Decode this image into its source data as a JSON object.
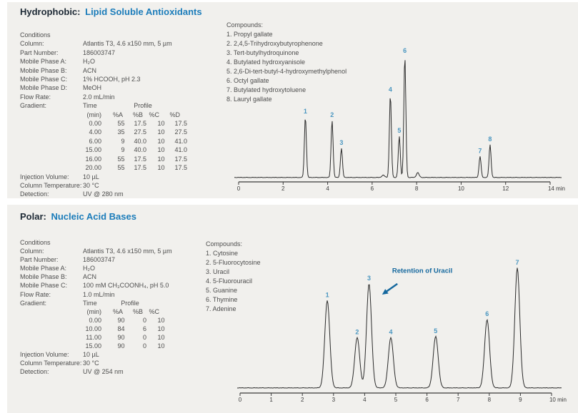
{
  "colors": {
    "page_bg": "#ffffff",
    "panel_bg": "#f1f0ed",
    "heading_dark": "#1e2a36",
    "heading_accent": "#1b7cba",
    "body_text": "#4e4e4e",
    "peak_label": "#4a96c0",
    "annotation": "#15689e",
    "trace": "#2b2b2b",
    "axis": "#3a3a3a"
  },
  "sections": [
    {
      "title_prefix": "Hydrophobic:",
      "title_main": "Lipid Soluble Antioxidants",
      "conditions_header": "Conditions",
      "conditions": [
        {
          "label": "Column:",
          "value": "Atlantis T3, 4.6 x150 mm, 5 µm"
        },
        {
          "label": "Part Number:",
          "value": "186003747"
        },
        {
          "label": "Mobile Phase A:",
          "value": "H₂O"
        },
        {
          "label": "Mobile Phase B:",
          "value": "ACN"
        },
        {
          "label": "Mobile Phase C:",
          "value": "1% HCOOH, pH 2.3"
        },
        {
          "label": "Mobile Phase D:",
          "value": "MeOH"
        },
        {
          "label": "Flow Rate:",
          "value": "2.0 mL/min"
        }
      ],
      "gradient": {
        "label": "Gradient:",
        "time_header": "Time",
        "profile_header": "Profile",
        "col_headers": [
          "(min)",
          "%A",
          "%B",
          "%C",
          "%D"
        ],
        "rows": [
          [
            "0.00",
            "55",
            "17.5",
            "10",
            "17.5"
          ],
          [
            "4.00",
            "35",
            "27.5",
            "10",
            "27.5"
          ],
          [
            "6.00",
            "9",
            "40.0",
            "10",
            "41.0"
          ],
          [
            "15.00",
            "9",
            "40.0",
            "10",
            "41.0"
          ],
          [
            "16.00",
            "55",
            "17.5",
            "10",
            "17.5"
          ],
          [
            "20.00",
            "55",
            "17.5",
            "10",
            "17.5"
          ]
        ]
      },
      "post_conditions": [
        {
          "label": "Injection Volume:",
          "value": "10 µL"
        },
        {
          "label": "Column Temperature:",
          "value": "30 °C"
        },
        {
          "label": "Detection:",
          "value": "UV @ 280 nm"
        }
      ],
      "compounds_header": "Compounds:",
      "compounds": [
        "1. Propyl gallate",
        "2. 2,4,5-Trihydroxybutyrophenone",
        "3. Tert-butylhydroquinone",
        "4. Butylated hydroxyanisole",
        "5. 2,6-Di-tert-butyl-4-hydroxymethylphenol",
        "6. Octyl gallate",
        "7. Butylated hydroxytoluene",
        "8. Lauryl gallate"
      ]
    },
    {
      "title_prefix": "Polar:",
      "title_main": "Nucleic Acid Bases",
      "conditions_header": "Conditions",
      "conditions": [
        {
          "label": "Column:",
          "value": "Atlantis T3, 4.6 x150 mm, 5 µm"
        },
        {
          "label": "Part Number:",
          "value": "186003747"
        },
        {
          "label": "Mobile Phase A:",
          "value": "H₂O"
        },
        {
          "label": "Mobile Phase B:",
          "value": "ACN"
        },
        {
          "label": "Mobile Phase C:",
          "value": "100 mM CH₃COONH₄, pH 5.0"
        },
        {
          "label": "Flow Rate:",
          "value": "1.0 mL/min"
        }
      ],
      "gradient": {
        "label": "Gradient:",
        "time_header": "Time",
        "profile_header": "Profile",
        "col_headers": [
          "(min)",
          "%A",
          "%B",
          "%C"
        ],
        "rows": [
          [
            "0.00",
            "90",
            "0",
            "10"
          ],
          [
            "10.00",
            "84",
            "6",
            "10"
          ],
          [
            "11.00",
            "90",
            "0",
            "10"
          ],
          [
            "15.00",
            "90",
            "0",
            "10"
          ]
        ]
      },
      "post_conditions": [
        {
          "label": "Injection Volume:",
          "value": "10 µL"
        },
        {
          "label": "Column Temperature:",
          "value": "30 °C"
        },
        {
          "label": "Detection:",
          "value": "UV @ 254 nm"
        }
      ],
      "compounds_header": "Compounds:",
      "compounds": [
        "1. Cytosine",
        "2. 5-Fluorocytosine",
        "3. Uracil",
        "4. 5-Fluorouracil",
        "5. Guanine",
        "6. Thymine",
        "7. Adenine"
      ]
    }
  ],
  "chart_data": [
    {
      "type": "line",
      "title": "Hydrophobic: Lipid Soluble Antioxidants chromatogram",
      "xlabel": "min",
      "ylabel": "",
      "grid": false,
      "xlim": [
        0,
        14
      ],
      "x_ticks": [
        0,
        2,
        4,
        6,
        8,
        10,
        12,
        14
      ],
      "x_tick_labels": [
        "0",
        "2",
        "4",
        "6",
        "8",
        "10",
        "12",
        "14 min"
      ],
      "peak_sigma_min": 0.045,
      "peaks": [
        {
          "id": "1",
          "compound": "Propyl gallate",
          "rt": 3.0,
          "height": 0.5
        },
        {
          "id": "2",
          "compound": "2,4,5-Trihydroxybutyrophenone",
          "rt": 4.2,
          "height": 0.47
        },
        {
          "id": "3",
          "compound": "Tert-butylhydroquinone",
          "rt": 4.62,
          "height": 0.24
        },
        {
          "id": "4",
          "compound": "Butylated hydroxyanisole",
          "rt": 6.82,
          "height": 0.68
        },
        {
          "id": "5",
          "compound": "2,6-Di-tert-butyl-4-hydroxymethylphenol",
          "rt": 7.22,
          "height": 0.34
        },
        {
          "id": "6",
          "compound": "Octyl gallate",
          "rt": 7.47,
          "height": 1.0
        },
        {
          "id": "7",
          "compound": "Butylated hydroxytoluene",
          "rt": 10.85,
          "height": 0.175
        },
        {
          "id": "8",
          "compound": "Lauryl gallate",
          "rt": 11.3,
          "height": 0.27
        }
      ],
      "minor_bumps": [
        {
          "rt": 6.5,
          "height": 0.02
        },
        {
          "rt": 8.05,
          "height": 0.04
        }
      ]
    },
    {
      "type": "line",
      "title": "Polar: Nucleic Acid Bases chromatogram",
      "xlabel": "min",
      "ylabel": "",
      "grid": false,
      "xlim": [
        0,
        10
      ],
      "x_ticks": [
        0,
        1,
        2,
        3,
        4,
        5,
        6,
        7,
        8,
        9,
        10
      ],
      "x_tick_labels": [
        "0",
        "1",
        "2",
        "3",
        "4",
        "5",
        "6",
        "7",
        "8",
        "9",
        "10 min"
      ],
      "peak_sigma_min": 0.08,
      "peaks": [
        {
          "id": "1",
          "compound": "Cytosine",
          "rt": 2.8,
          "height": 0.73
        },
        {
          "id": "2",
          "compound": "5-Fluorocytosine",
          "rt": 3.76,
          "height": 0.42
        },
        {
          "id": "3",
          "compound": "Uracil",
          "rt": 4.14,
          "height": 0.87
        },
        {
          "id": "4",
          "compound": "5-Fluorouracil",
          "rt": 4.84,
          "height": 0.42
        },
        {
          "id": "5",
          "compound": "Guanine",
          "rt": 6.28,
          "height": 0.43
        },
        {
          "id": "6",
          "compound": "Thymine",
          "rt": 7.93,
          "height": 0.57
        },
        {
          "id": "7",
          "compound": "Adenine",
          "rt": 8.9,
          "height": 1.0
        }
      ],
      "minor_bumps": [],
      "annotation": {
        "text": "Retention of Uracil",
        "text_x_min": 5.85,
        "text_y_frac": 0.96,
        "arrow_tail_x_min": 5.05,
        "arrow_tail_y_frac": 0.87,
        "arrow_tip_x_min": 4.56,
        "arrow_tip_y_frac": 0.78
      }
    }
  ]
}
